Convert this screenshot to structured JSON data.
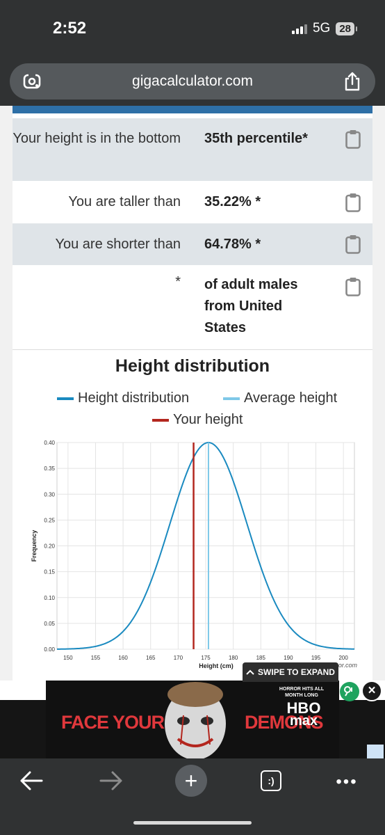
{
  "status": {
    "time": "2:52",
    "network": "5G",
    "battery": "28"
  },
  "browser": {
    "url": "gigacalculator.com"
  },
  "results": [
    {
      "label": "Your height is in the bottom",
      "value": "35th percentile*"
    },
    {
      "label": "You are taller than",
      "value": "35.22% *"
    },
    {
      "label": "You are shorter than",
      "value": "64.78% *"
    },
    {
      "label": "*",
      "value": "of adult males from United States"
    }
  ],
  "chart_data": {
    "type": "line",
    "title": "Height distribution",
    "xlabel": "Height (cm)",
    "ylabel": "Frequency",
    "xlim": [
      148,
      202
    ],
    "ylim": [
      0,
      0.4
    ],
    "x_ticks": [
      150,
      155,
      160,
      165,
      170,
      175,
      180,
      185,
      190,
      195,
      200
    ],
    "y_ticks": [
      "0.00",
      "0.05",
      "0.10",
      "0.15",
      "0.20",
      "0.25",
      "0.30",
      "0.35",
      "0.40"
    ],
    "distribution": {
      "mean": 175.5,
      "sd": 7.0,
      "peak": 0.4
    },
    "series": [
      {
        "name": "Height distribution",
        "color": "#1a8ac0",
        "style": "curve"
      },
      {
        "name": "Average height",
        "color": "#7ec8e8",
        "x": 175.5
      },
      {
        "name": "Your height",
        "color": "#b3261e",
        "x": 172.8
      }
    ],
    "grid": true,
    "legend": "top",
    "watermark_fragment": "or.com"
  },
  "ad": {
    "swipe_label": "SWIPE TO EXPAND",
    "tagline_left": "FACE YOUR",
    "tagline_right": "DEMONS",
    "small_text": "HORROR HITS ALL MONTH LONG",
    "brand_line1": "HBO",
    "brand_line2": "max",
    "close_label": "×"
  },
  "toolbar": {
    "tabs_label": ":)",
    "more_label": "•••",
    "new_tab_label": "+"
  }
}
